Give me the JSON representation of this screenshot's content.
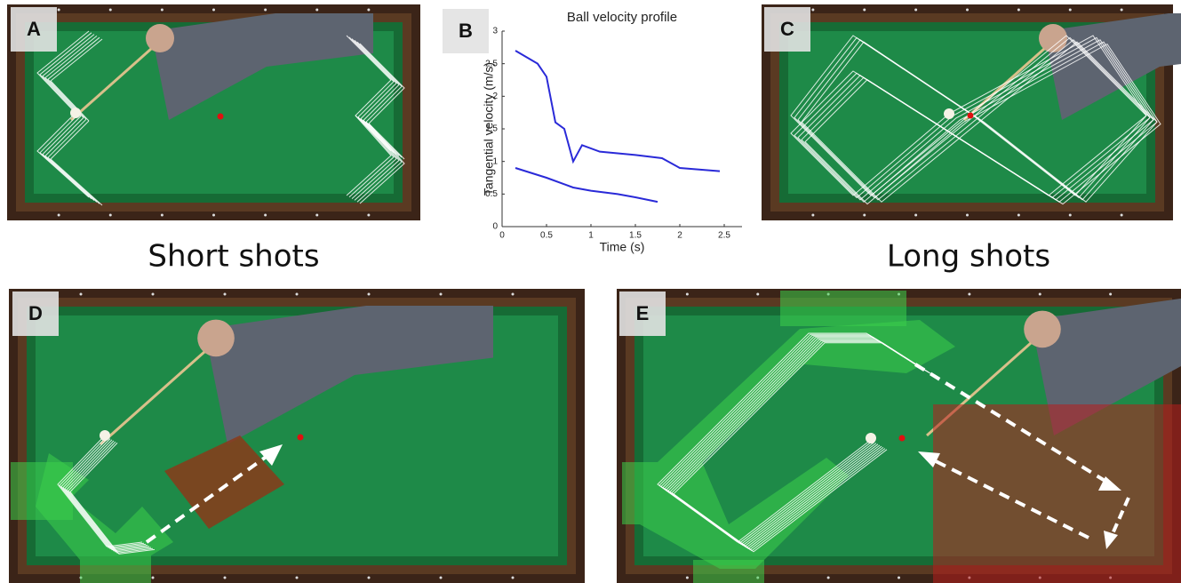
{
  "panels": [
    {
      "label": "A"
    },
    {
      "label": "B"
    },
    {
      "label": "C"
    },
    {
      "label": "D"
    },
    {
      "label": "E"
    }
  ],
  "captions": {
    "short": "Short shots",
    "long": "Long shots"
  },
  "chart_data": {
    "type": "line",
    "title": "Ball velocity profile",
    "x_label": "Time (s)",
    "y_label": "Tangential velocity (m/s)",
    "xlim": [
      0,
      2.7
    ],
    "ylim": [
      0,
      3
    ],
    "xticks": [
      0,
      0.5,
      1,
      1.5,
      2,
      2.5
    ],
    "yticks": [
      0,
      0.5,
      1,
      1.5,
      2,
      2.5,
      3
    ],
    "series": [
      {
        "color": "#2a2ad8",
        "x": [
          0.15,
          0.4,
          0.5,
          0.6,
          0.7,
          0.8,
          0.9,
          1.1,
          1.5,
          1.8,
          2.0,
          2.45
        ],
        "values": [
          2.7,
          2.5,
          2.3,
          1.6,
          1.5,
          1.0,
          1.25,
          1.15,
          1.1,
          1.05,
          0.9,
          0.85
        ]
      },
      {
        "color": "#2a2ad8",
        "x": [
          0.15,
          0.5,
          0.8,
          1.0,
          1.3,
          1.5,
          1.75
        ],
        "values": [
          0.9,
          0.75,
          0.6,
          0.55,
          0.5,
          0.45,
          0.38
        ]
      }
    ]
  }
}
